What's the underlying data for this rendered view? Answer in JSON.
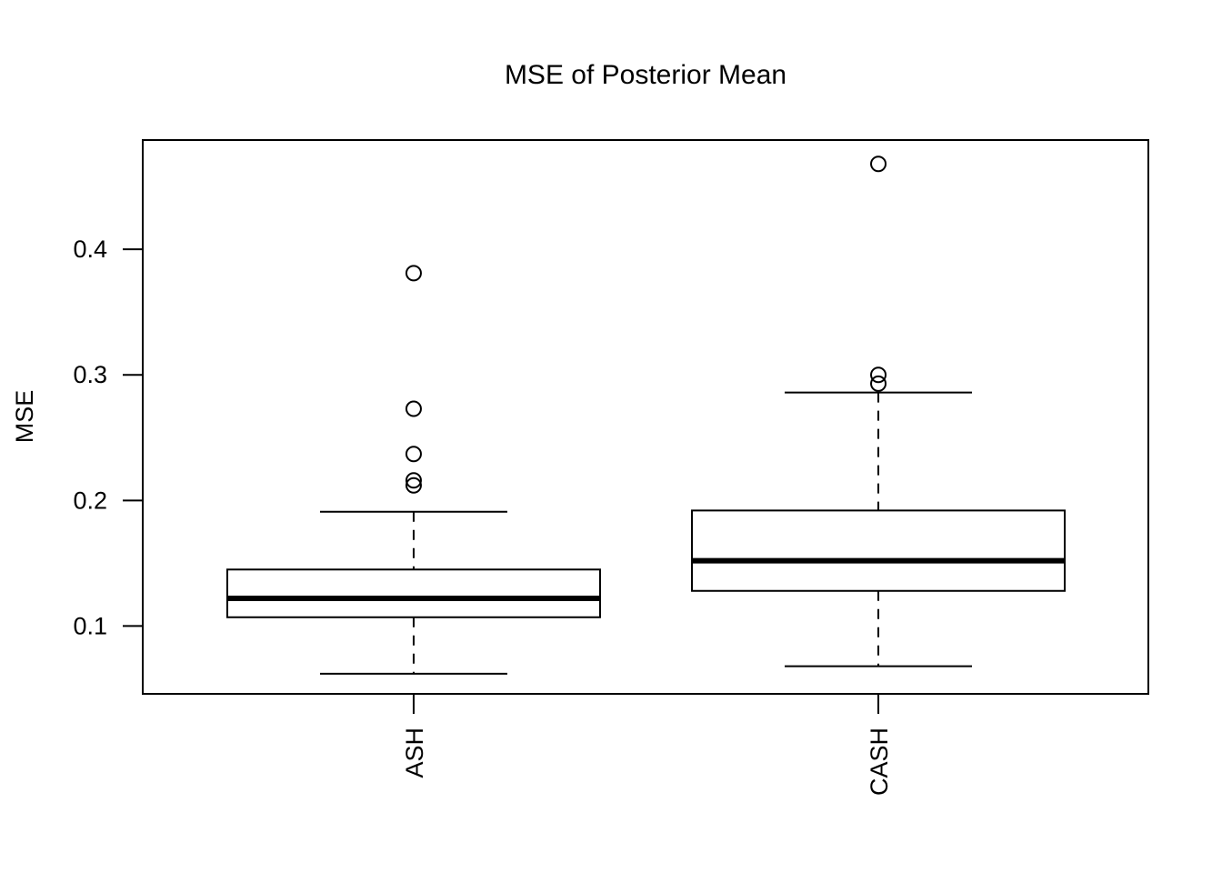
{
  "chart_data": {
    "type": "boxplot",
    "title": "MSE of Posterior Mean",
    "ylabel": "MSE",
    "xlabel": "",
    "categories": [
      "ASH",
      "CASH"
    ],
    "yticks": [
      "0.1",
      "0.2",
      "0.3",
      "0.4"
    ],
    "ytick_values": [
      0.1,
      0.2,
      0.3,
      0.4
    ],
    "ylim": [
      0.046,
      0.487
    ],
    "grid": false,
    "legend": false,
    "orientation": "vertical",
    "series": [
      {
        "name": "ASH",
        "whisker_low": 0.062,
        "q1": 0.107,
        "median": 0.122,
        "q3": 0.145,
        "whisker_high": 0.191,
        "outliers": [
          0.212,
          0.216,
          0.237,
          0.273,
          0.381
        ]
      },
      {
        "name": "CASH",
        "whisker_low": 0.068,
        "q1": 0.128,
        "median": 0.152,
        "q3": 0.192,
        "whisker_high": 0.286,
        "outliers": [
          0.293,
          0.3,
          0.468
        ]
      }
    ],
    "colors": {
      "stroke": "#000000",
      "background": "#ffffff",
      "box_fill": "#ffffff"
    }
  }
}
